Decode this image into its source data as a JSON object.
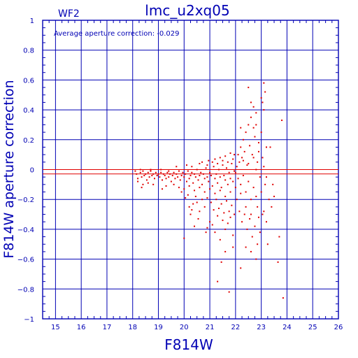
{
  "chart_data": {
    "type": "scatter",
    "title": "lmc_u2xq05",
    "chip_label": "WF2",
    "annotation": "Average aperture correction:  -0.029",
    "xlabel": "F814W",
    "ylabel": "F814W aperture correction",
    "xlim": [
      14.5,
      26.0
    ],
    "ylim": [
      -1.0,
      1.0
    ],
    "x_ticks": [
      15,
      16,
      17,
      18,
      19,
      20,
      21,
      22,
      23,
      24,
      25,
      26
    ],
    "y_ticks": [
      -1,
      -0.8,
      -0.6,
      -0.4,
      -0.2,
      0,
      0.2,
      0.4,
      0.6,
      0.8,
      1
    ],
    "y_tick_labels": [
      "−1",
      "−0.8",
      "−0.6",
      "−0.4",
      "−0.2",
      "0",
      "0.2",
      "0.4",
      "0.6",
      "0.8",
      "1"
    ],
    "grid": true,
    "average_correction": -0.029,
    "colors": {
      "axes": "#0000b4",
      "points": "#e00000",
      "reference_line": "#e00000"
    },
    "points": [
      [
        18.1,
        -0.01
      ],
      [
        18.15,
        -0.03
      ],
      [
        18.2,
        -0.06
      ],
      [
        18.3,
        -0.02
      ],
      [
        18.35,
        -0.05
      ],
      [
        18.4,
        -0.01
      ],
      [
        18.45,
        -0.04
      ],
      [
        18.5,
        -0.03
      ],
      [
        18.55,
        -0.07
      ],
      [
        18.6,
        -0.02
      ],
      [
        18.65,
        -0.05
      ],
      [
        18.7,
        -0.01
      ],
      [
        18.75,
        -0.04
      ],
      [
        18.8,
        -0.03
      ],
      [
        18.85,
        -0.06
      ],
      [
        18.9,
        -0.02
      ],
      [
        18.95,
        -0.04
      ],
      [
        19.0,
        -0.03
      ],
      [
        19.05,
        -0.05
      ],
      [
        19.1,
        -0.02
      ],
      [
        19.15,
        -0.07
      ],
      [
        19.2,
        -0.03
      ],
      [
        19.25,
        -0.04
      ],
      [
        19.3,
        -0.06
      ],
      [
        19.35,
        -0.02
      ],
      [
        19.4,
        -0.05
      ],
      [
        19.45,
        -0.03
      ],
      [
        19.5,
        -0.08
      ],
      [
        19.55,
        -0.04
      ],
      [
        19.6,
        -0.02
      ],
      [
        19.65,
        -0.06
      ],
      [
        19.7,
        -0.03
      ],
      [
        19.75,
        -0.05
      ],
      [
        19.8,
        -0.01
      ],
      [
        19.85,
        -0.07
      ],
      [
        19.9,
        -0.04
      ],
      [
        19.95,
        -0.02
      ],
      [
        20.0,
        -0.05
      ],
      [
        20.05,
        -0.03
      ],
      [
        20.1,
        -0.08
      ],
      [
        20.15,
        -0.01
      ],
      [
        20.2,
        -0.06
      ],
      [
        20.25,
        -0.04
      ],
      [
        20.3,
        -0.02
      ],
      [
        20.35,
        -0.09
      ],
      [
        20.4,
        -0.03
      ],
      [
        20.45,
        -0.05
      ],
      [
        20.5,
        0.0
      ],
      [
        20.55,
        -0.07
      ],
      [
        20.6,
        -0.04
      ],
      [
        20.65,
        -0.02
      ],
      [
        20.7,
        -0.1
      ],
      [
        20.75,
        -0.03
      ],
      [
        20.8,
        -0.06
      ],
      [
        20.85,
        0.01
      ],
      [
        20.9,
        -0.05
      ],
      [
        20.95,
        -0.08
      ],
      [
        21.0,
        -0.02
      ],
      [
        21.05,
        -0.04
      ],
      [
        21.1,
        -0.11
      ],
      [
        21.15,
        0.02
      ],
      [
        21.2,
        -0.06
      ],
      [
        21.25,
        -0.03
      ],
      [
        21.3,
        -0.09
      ],
      [
        21.35,
        0.0
      ],
      [
        21.4,
        -0.05
      ],
      [
        21.45,
        -0.12
      ],
      [
        21.5,
        0.03
      ],
      [
        21.55,
        -0.04
      ],
      [
        21.6,
        -0.07
      ],
      [
        21.65,
        0.01
      ],
      [
        21.7,
        -0.1
      ],
      [
        21.75,
        -0.02
      ],
      [
        21.8,
        -0.06
      ],
      [
        21.85,
        0.04
      ],
      [
        21.9,
        -0.08
      ],
      [
        21.95,
        -0.01
      ],
      [
        18.2,
        -0.08
      ],
      [
        18.4,
        -0.1
      ],
      [
        18.6,
        -0.09
      ],
      [
        18.8,
        -0.1
      ],
      [
        18.3,
        0.0
      ],
      [
        18.7,
        0.0
      ],
      [
        19.1,
        0.0
      ],
      [
        19.4,
        -0.01
      ],
      [
        19.3,
        -0.11
      ],
      [
        19.6,
        -0.1
      ],
      [
        19.8,
        -0.12
      ],
      [
        20.0,
        -0.13
      ],
      [
        20.2,
        -0.11
      ],
      [
        20.4,
        -0.14
      ],
      [
        20.6,
        -0.12
      ],
      [
        20.8,
        -0.15
      ],
      [
        21.0,
        -0.13
      ],
      [
        21.2,
        -0.16
      ],
      [
        21.4,
        -0.14
      ],
      [
        21.6,
        -0.18
      ],
      [
        21.8,
        -0.15
      ],
      [
        19.7,
        0.02
      ],
      [
        20.1,
        0.03
      ],
      [
        20.3,
        0.02
      ],
      [
        20.6,
        0.04
      ],
      [
        20.9,
        0.03
      ],
      [
        21.1,
        0.05
      ],
      [
        21.3,
        0.04
      ],
      [
        21.5,
        0.06
      ],
      [
        21.7,
        0.05
      ],
      [
        21.9,
        0.07
      ],
      [
        21.4,
        0.08
      ],
      [
        21.6,
        0.09
      ],
      [
        21.2,
        0.07
      ],
      [
        20.95,
        0.06
      ],
      [
        20.7,
        0.05
      ],
      [
        18.35,
        -0.12
      ],
      [
        19.15,
        -0.13
      ],
      [
        19.9,
        -0.15
      ],
      [
        20.15,
        -0.17
      ],
      [
        20.45,
        -0.18
      ],
      [
        20.7,
        -0.2
      ],
      [
        20.9,
        -0.19
      ],
      [
        21.05,
        -0.22
      ],
      [
        21.25,
        -0.2
      ],
      [
        21.45,
        -0.23
      ],
      [
        21.65,
        -0.21
      ],
      [
        21.85,
        -0.24
      ],
      [
        20.5,
        -0.22
      ],
      [
        20.8,
        -0.25
      ],
      [
        21.15,
        -0.27
      ],
      [
        21.35,
        -0.26
      ],
      [
        21.55,
        -0.29
      ],
      [
        21.75,
        -0.28
      ],
      [
        21.95,
        -0.3
      ],
      [
        20.35,
        -0.23
      ],
      [
        20.05,
        -0.19
      ],
      [
        20.2,
        -0.25
      ],
      [
        20.6,
        -0.28
      ],
      [
        20.55,
        -0.33
      ],
      [
        20.25,
        -0.3
      ],
      [
        20.4,
        -0.38
      ],
      [
        20.3,
        -0.27
      ],
      [
        21.0,
        -0.35
      ],
      [
        21.3,
        -0.31
      ],
      [
        21.5,
        -0.34
      ],
      [
        21.7,
        -0.36
      ],
      [
        21.8,
        -0.32
      ],
      [
        21.6,
        -0.4
      ],
      [
        21.2,
        -0.42
      ],
      [
        20.9,
        -0.39
      ],
      [
        21.9,
        -0.44
      ],
      [
        21.4,
        -0.47
      ],
      [
        21.1,
        -0.37
      ],
      [
        22.0,
        -0.02
      ],
      [
        22.05,
        0.02
      ],
      [
        22.1,
        -0.06
      ],
      [
        22.15,
        0.05
      ],
      [
        22.2,
        -0.1
      ],
      [
        22.25,
        0.08
      ],
      [
        22.3,
        -0.04
      ],
      [
        22.35,
        0.12
      ],
      [
        22.4,
        -0.15
      ],
      [
        22.45,
        0.03
      ],
      [
        22.5,
        -0.08
      ],
      [
        22.55,
        0.16
      ],
      [
        22.6,
        -0.2
      ],
      [
        22.65,
        0.1
      ],
      [
        22.7,
        -0.12
      ],
      [
        22.75,
        0.22
      ],
      [
        22.8,
        0.0
      ],
      [
        22.85,
        -0.25
      ],
      [
        22.9,
        0.18
      ],
      [
        22.95,
        -0.05
      ],
      [
        22.05,
        -0.2
      ],
      [
        22.15,
        -0.28
      ],
      [
        22.25,
        -0.35
      ],
      [
        22.35,
        -0.3
      ],
      [
        22.45,
        -0.4
      ],
      [
        22.55,
        -0.33
      ],
      [
        22.65,
        -0.45
      ],
      [
        22.75,
        -0.38
      ],
      [
        22.85,
        -0.5
      ],
      [
        22.95,
        -0.42
      ],
      [
        22.1,
        0.1
      ],
      [
        22.2,
        0.15
      ],
      [
        22.3,
        0.2
      ],
      [
        22.4,
        0.25
      ],
      [
        22.5,
        0.3
      ],
      [
        22.6,
        0.35
      ],
      [
        22.7,
        0.28
      ],
      [
        22.8,
        0.3
      ],
      [
        22.9,
        0.12
      ],
      [
        22.3,
        0.06
      ],
      [
        22.5,
        0.04
      ],
      [
        22.7,
        0.08
      ],
      [
        22.4,
        -0.25
      ],
      [
        22.6,
        -0.3
      ],
      [
        22.8,
        -0.18
      ],
      [
        22.2,
        -0.16
      ],
      [
        22.0,
        -0.12
      ],
      [
        22.9,
        -0.32
      ],
      [
        22.5,
        0.55
      ],
      [
        22.6,
        0.45
      ],
      [
        22.7,
        0.42
      ],
      [
        22.8,
        0.38
      ],
      [
        23.1,
        0.58
      ],
      [
        23.15,
        0.52
      ],
      [
        23.0,
        0.48
      ],
      [
        23.05,
        0.45
      ],
      [
        23.1,
        0.4
      ],
      [
        23.0,
        0.25
      ],
      [
        23.2,
        0.15
      ],
      [
        23.05,
        0.08
      ],
      [
        23.1,
        0.02
      ],
      [
        23.2,
        -0.05
      ],
      [
        23.0,
        -0.15
      ],
      [
        23.1,
        -0.28
      ],
      [
        23.2,
        -0.35
      ],
      [
        23.05,
        -0.3
      ],
      [
        23.15,
        -0.1
      ],
      [
        23.8,
        0.33
      ],
      [
        23.85,
        -0.86
      ],
      [
        23.65,
        -0.62
      ],
      [
        23.7,
        -0.45
      ],
      [
        23.45,
        -0.1
      ],
      [
        23.35,
        0.15
      ],
      [
        23.5,
        -0.18
      ],
      [
        23.25,
        -0.5
      ],
      [
        22.85,
        0.05
      ],
      [
        21.9,
        -0.52
      ],
      [
        21.3,
        -0.75
      ],
      [
        21.75,
        -0.82
      ],
      [
        20.0,
        -0.46
      ],
      [
        22.4,
        -0.52
      ],
      [
        22.6,
        -0.55
      ],
      [
        22.8,
        -0.6
      ],
      [
        21.6,
        -0.55
      ],
      [
        20.85,
        -0.42
      ],
      [
        21.45,
        -0.62
      ],
      [
        22.2,
        -0.66
      ],
      [
        21.95,
        0.1
      ],
      [
        21.8,
        0.11
      ],
      [
        22.2,
        0.28
      ],
      [
        23.3,
        -0.2
      ],
      [
        23.4,
        -0.25
      ]
    ]
  }
}
